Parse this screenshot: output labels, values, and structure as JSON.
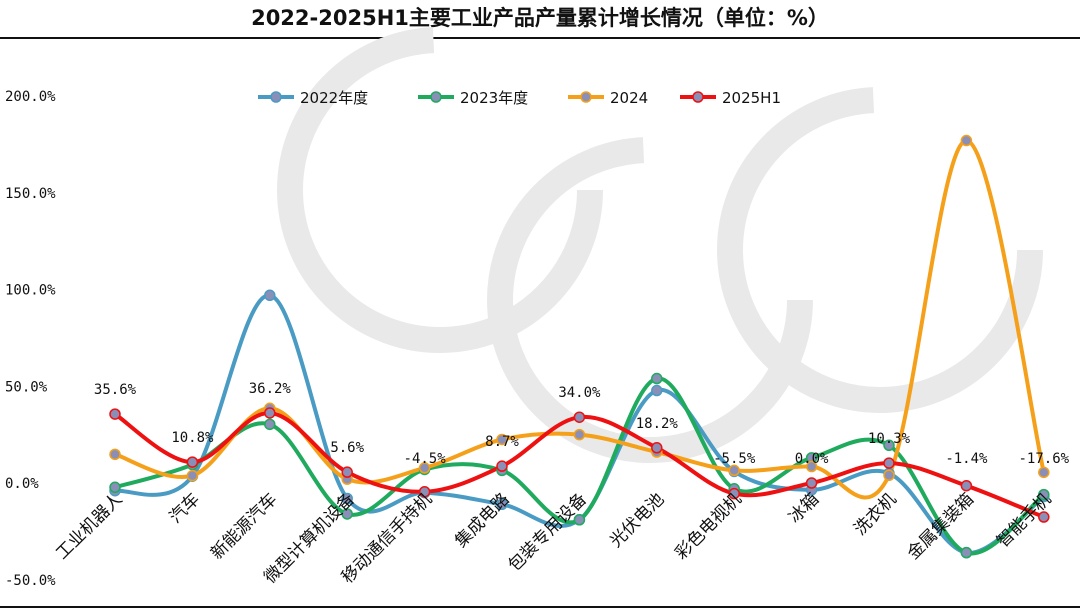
{
  "title": "2022-2025H1主要工业产品产量累计增长情况（单位：%）",
  "watermark": "CCGII",
  "chart_data": {
    "type": "line",
    "title": "2022-2025H1主要工业产品产量累计增长情况（单位：%）",
    "categories": [
      "工业机器人",
      "汽车",
      "新能源汽车",
      "微型计算机设备",
      "移动通信手持机",
      "集成电路",
      "包装专用设备",
      "光伏电池",
      "彩色电视机",
      "冰箱",
      "洗衣机",
      "金属集装箱",
      "智能手机"
    ],
    "ylim": [
      -50,
      200
    ],
    "yticks": [
      -50,
      0,
      50,
      100,
      150,
      200
    ],
    "ytick_labels": [
      "-50.0%",
      "0.0%",
      "50.0%",
      "100.0%",
      "150.0%",
      "200.0%"
    ],
    "legend_position": "top",
    "grid": false,
    "series": [
      {
        "name": "2022年度",
        "color": "#4a9bc4",
        "values": [
          -4.0,
          3.5,
          97.0,
          -8.0,
          -5.0,
          -11.0,
          -19.0,
          47.8,
          6.0,
          -3.5,
          5.0,
          -36.0,
          -7.0
        ]
      },
      {
        "name": "2023年度",
        "color": "#1faa5e",
        "values": [
          -2.2,
          9.5,
          30.3,
          -16.0,
          7.0,
          6.5,
          -19.0,
          54.0,
          -3.0,
          13.0,
          19.5,
          -36.0,
          -6.0
        ]
      },
      {
        "name": "2024",
        "color": "#f5a01a",
        "values": [
          14.8,
          3.8,
          38.6,
          2.0,
          7.8,
          22.5,
          25.0,
          16.0,
          6.5,
          8.5,
          4.0,
          177.0,
          5.5
        ]
      },
      {
        "name": "2025H1",
        "color": "#ee1111",
        "values": [
          35.6,
          10.8,
          36.2,
          5.6,
          -4.5,
          8.7,
          34.0,
          18.2,
          -5.5,
          0.0,
          10.3,
          -1.4,
          -17.6
        ]
      }
    ],
    "data_labels": [
      "35.6%",
      "10.8%",
      "36.2%",
      "5.6%",
      "-4.5%",
      "8.7%",
      "34.0%",
      "18.2%",
      "-5.5%",
      "0.0%",
      "10.3%",
      "-1.4%",
      "-17.6%"
    ]
  }
}
